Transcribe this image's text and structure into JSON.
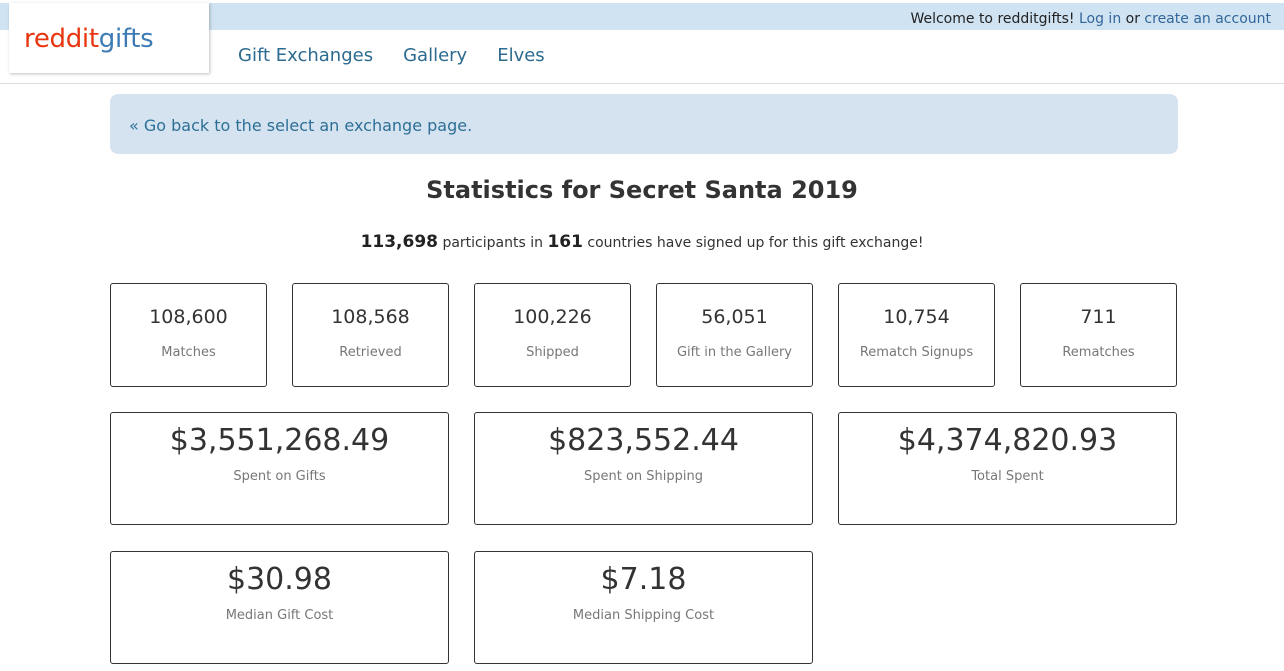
{
  "header": {
    "logo_part1": "reddit",
    "logo_part2": "gifts",
    "welcome_text": "Welcome to redditgifts!",
    "login_label": "Log in",
    "or_text": "or",
    "create_account_label": "create an account",
    "nav": [
      "Gift Exchanges",
      "Gallery",
      "Elves"
    ]
  },
  "back_link": "« Go back to the select an exchange page.",
  "title": "Statistics for Secret Santa 2019",
  "summary": {
    "participants": "113,698",
    "participants_text": "participants in",
    "countries": "161",
    "countries_text": "countries have signed up for this gift exchange!"
  },
  "stats": [
    {
      "value": "108,600",
      "label": "Matches"
    },
    {
      "value": "108,568",
      "label": "Retrieved"
    },
    {
      "value": "100,226",
      "label": "Shipped"
    },
    {
      "value": "56,051",
      "label": "Gift in the Gallery"
    },
    {
      "value": "10,754",
      "label": "Rematch Signups"
    },
    {
      "value": "711",
      "label": "Rematches"
    }
  ],
  "money": [
    {
      "value": "$3,551,268.49",
      "label": "Spent on Gifts"
    },
    {
      "value": "$823,552.44",
      "label": "Spent on Shipping"
    },
    {
      "value": "$4,374,820.93",
      "label": "Total Spent"
    }
  ],
  "medians": [
    {
      "value": "$30.98",
      "label": "Median Gift Cost"
    },
    {
      "value": "$7.18",
      "label": "Median Shipping Cost"
    }
  ]
}
